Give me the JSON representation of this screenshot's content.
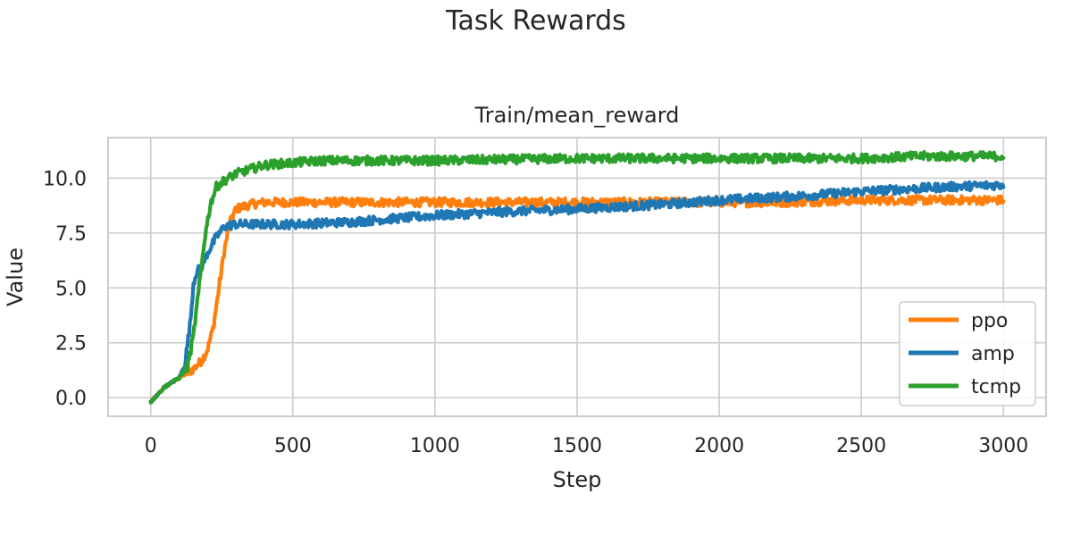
{
  "figure": {
    "title": "Task Rewards"
  },
  "chart_data": {
    "type": "line",
    "title": "Train/mean_reward",
    "xlabel": "Step",
    "ylabel": "Value",
    "xlim": [
      -150,
      3150
    ],
    "ylim": [
      -0.85,
      11.85
    ],
    "xticks": [
      0,
      500,
      1000,
      1500,
      2000,
      2500,
      3000
    ],
    "xtick_labels": [
      "0",
      "500",
      "1000",
      "1500",
      "2000",
      "2500",
      "3000"
    ],
    "yticks": [
      0.0,
      2.5,
      5.0,
      7.5,
      10.0
    ],
    "ytick_labels": [
      "0.0",
      "2.5",
      "5.0",
      "7.5",
      "10.0"
    ],
    "grid": true,
    "legend_position": "lower-right",
    "series": [
      {
        "name": "ppo",
        "color": "#ff7f0e",
        "x": [
          0,
          50,
          100,
          150,
          180,
          200,
          220,
          240,
          260,
          280,
          300,
          350,
          400,
          500,
          600,
          800,
          1000,
          1200,
          1500,
          1800,
          2000,
          2200,
          2500,
          2800,
          3000
        ],
        "y": [
          -0.2,
          0.5,
          0.9,
          1.3,
          1.7,
          2.2,
          3.2,
          5.0,
          6.8,
          8.0,
          8.6,
          8.8,
          8.9,
          8.9,
          8.9,
          8.9,
          8.9,
          8.9,
          8.9,
          8.9,
          8.9,
          8.9,
          9.0,
          9.0,
          9.0
        ]
      },
      {
        "name": "amp",
        "color": "#1f77b4",
        "x": [
          0,
          50,
          100,
          120,
          140,
          150,
          160,
          180,
          200,
          230,
          260,
          300,
          400,
          500,
          700,
          1000,
          1300,
          1500,
          1800,
          2000,
          2300,
          2500,
          2800,
          3000
        ],
        "y": [
          -0.2,
          0.5,
          0.9,
          1.5,
          3.5,
          5.2,
          5.7,
          6.0,
          6.6,
          7.3,
          7.8,
          7.9,
          7.9,
          7.9,
          8.0,
          8.3,
          8.5,
          8.6,
          8.8,
          9.0,
          9.2,
          9.4,
          9.6,
          9.7
        ]
      },
      {
        "name": "tcmp",
        "color": "#2ca02c",
        "x": [
          0,
          50,
          100,
          130,
          150,
          170,
          190,
          210,
          230,
          260,
          300,
          350,
          400,
          500,
          600,
          800,
          1000,
          1500,
          2000,
          2500,
          2700,
          3000
        ],
        "y": [
          -0.2,
          0.5,
          0.9,
          1.4,
          2.8,
          5.0,
          7.3,
          8.8,
          9.6,
          9.9,
          10.2,
          10.4,
          10.6,
          10.7,
          10.8,
          10.8,
          10.8,
          10.9,
          10.9,
          10.9,
          11.0,
          11.0
        ]
      }
    ]
  }
}
